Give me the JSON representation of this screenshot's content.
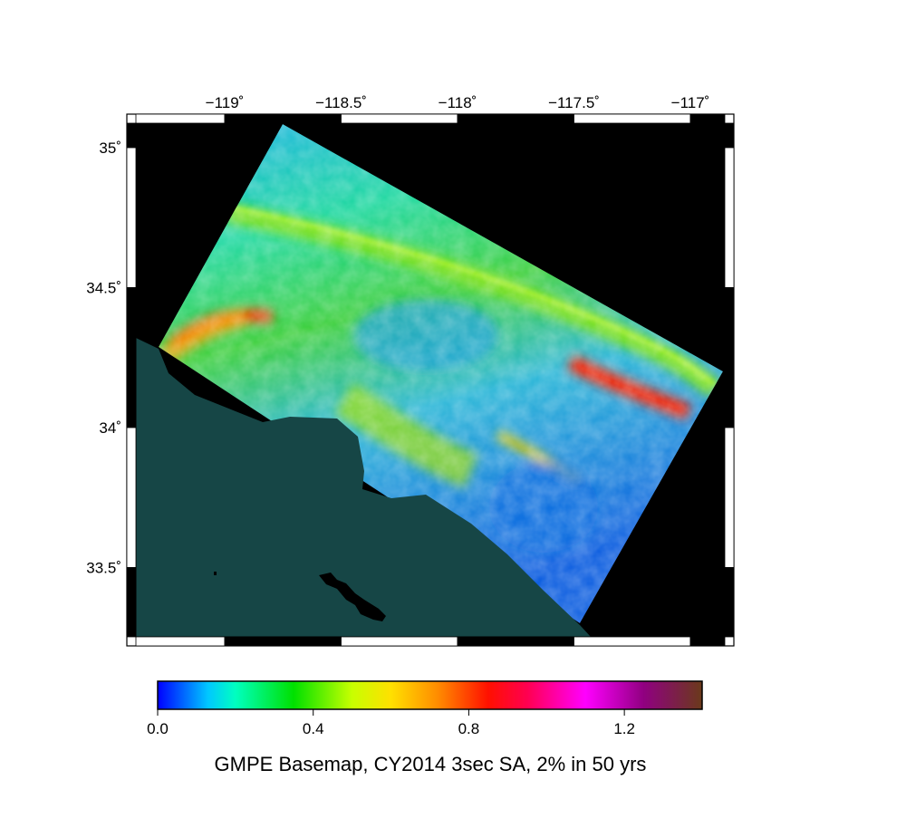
{
  "map": {
    "type": "hazard-map",
    "lon_ticks": [
      {
        "value": -119,
        "label": "−119˚"
      },
      {
        "value": -118.5,
        "label": "−118.5˚"
      },
      {
        "value": -118,
        "label": "−118˚"
      },
      {
        "value": -117.5,
        "label": "−117.5˚"
      },
      {
        "value": -117,
        "label": "−117˚"
      }
    ],
    "lat_ticks": [
      {
        "value": 35,
        "label": "35˚"
      },
      {
        "value": 34.5,
        "label": "34.5˚"
      },
      {
        "value": 34,
        "label": "34˚"
      },
      {
        "value": 33.5,
        "label": "33.5˚"
      }
    ],
    "colors": {
      "ocean": "#164646",
      "nodata": "#000000",
      "frame": "#000000"
    }
  },
  "colorbar": {
    "range": [
      0.0,
      1.4
    ],
    "ticks": [
      {
        "value": 0.0,
        "label": "0.0"
      },
      {
        "value": 0.4,
        "label": "0.4"
      },
      {
        "value": 0.8,
        "label": "0.8"
      },
      {
        "value": 1.2,
        "label": "1.2"
      }
    ],
    "stops": [
      {
        "value": 0.0,
        "color": "#0000ff"
      },
      {
        "value": 0.13,
        "color": "#00c8ff"
      },
      {
        "value": 0.2,
        "color": "#00ffc0"
      },
      {
        "value": 0.35,
        "color": "#00e000"
      },
      {
        "value": 0.5,
        "color": "#c8ff00"
      },
      {
        "value": 0.6,
        "color": "#ffe000"
      },
      {
        "value": 0.72,
        "color": "#ff8c00"
      },
      {
        "value": 0.85,
        "color": "#ff1000"
      },
      {
        "value": 0.95,
        "color": "#ff0050"
      },
      {
        "value": 1.1,
        "color": "#ff00ff"
      },
      {
        "value": 1.25,
        "color": "#900080"
      },
      {
        "value": 1.4,
        "color": "#6a3a1a"
      }
    ],
    "title": "GMPE Basemap, CY2014 3sec SA, 2% in 50 yrs"
  }
}
